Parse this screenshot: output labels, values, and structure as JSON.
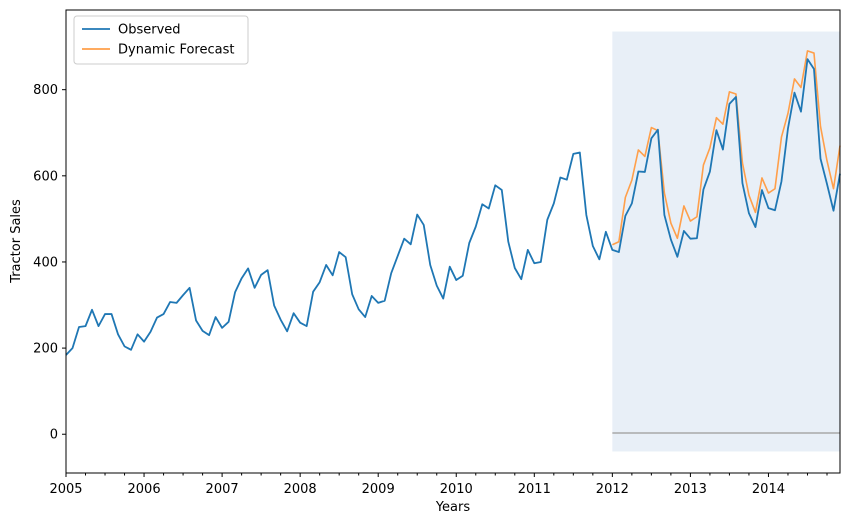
{
  "chart_data": {
    "type": "line",
    "title": "",
    "xlabel": "Years",
    "ylabel": "Tractor Sales",
    "xlim": [
      "2005-01",
      "2014-12"
    ],
    "ylim": [
      -90,
      985
    ],
    "yticks": [
      0,
      200,
      400,
      600,
      800
    ],
    "xticks": [
      "2005",
      "2006",
      "2007",
      "2008",
      "2009",
      "2010",
      "2011",
      "2012",
      "2013",
      "2014"
    ],
    "legend": {
      "placement": "top-left"
    },
    "forecast_region": {
      "x_start": "2012-01",
      "x_end": "2014-12",
      "y_range": [
        -40,
        935
      ],
      "color": "#e8eff7"
    },
    "baseline": {
      "value": 3,
      "x_start": "2012-01",
      "x_end": "2014-12",
      "color": "#a8a8a8"
    },
    "series": [
      {
        "name": "Observed",
        "color": "#1f77b4",
        "start": "2005-01",
        "values": [
          184,
          200,
          249,
          251,
          289,
          251,
          279,
          279,
          232,
          204,
          196,
          232,
          215,
          238,
          271,
          279,
          307,
          305,
          323,
          340,
          264,
          240,
          230,
          272,
          247,
          261,
          330,
          362,
          385,
          340,
          370,
          381,
          299,
          266,
          239,
          281,
          259,
          251,
          331,
          353,
          393,
          369,
          423,
          411,
          325,
          290,
          272,
          321,
          305,
          310,
          374,
          414,
          454,
          441,
          510,
          486,
          393,
          345,
          315,
          389,
          358,
          368,
          444,
          482,
          534,
          524,
          578,
          567,
          447,
          386,
          360,
          428,
          397,
          400,
          498,
          536,
          596,
          591,
          651,
          654,
          509,
          437,
          406,
          470,
          428,
          423,
          507,
          536,
          610,
          609,
          687,
          707,
          509,
          452,
          412,
          472,
          454,
          455,
          568,
          610,
          706,
          661,
          767,
          783,
          583,
          513,
          481,
          567,
          525,
          520,
          587,
          710,
          793,
          749,
          871,
          848,
          640,
          581,
          519,
          605
        ]
      },
      {
        "name": "Dynamic Forecast",
        "color": "#ff9f4a",
        "start": "2012-01",
        "values": [
          440,
          447,
          550,
          590,
          660,
          645,
          712,
          705,
          560,
          490,
          455,
          530,
          495,
          505,
          625,
          665,
          735,
          720,
          795,
          790,
          630,
          555,
          515,
          595,
          560,
          570,
          690,
          745,
          825,
          805,
          890,
          885,
          715,
          635,
          570,
          670
        ]
      }
    ]
  }
}
